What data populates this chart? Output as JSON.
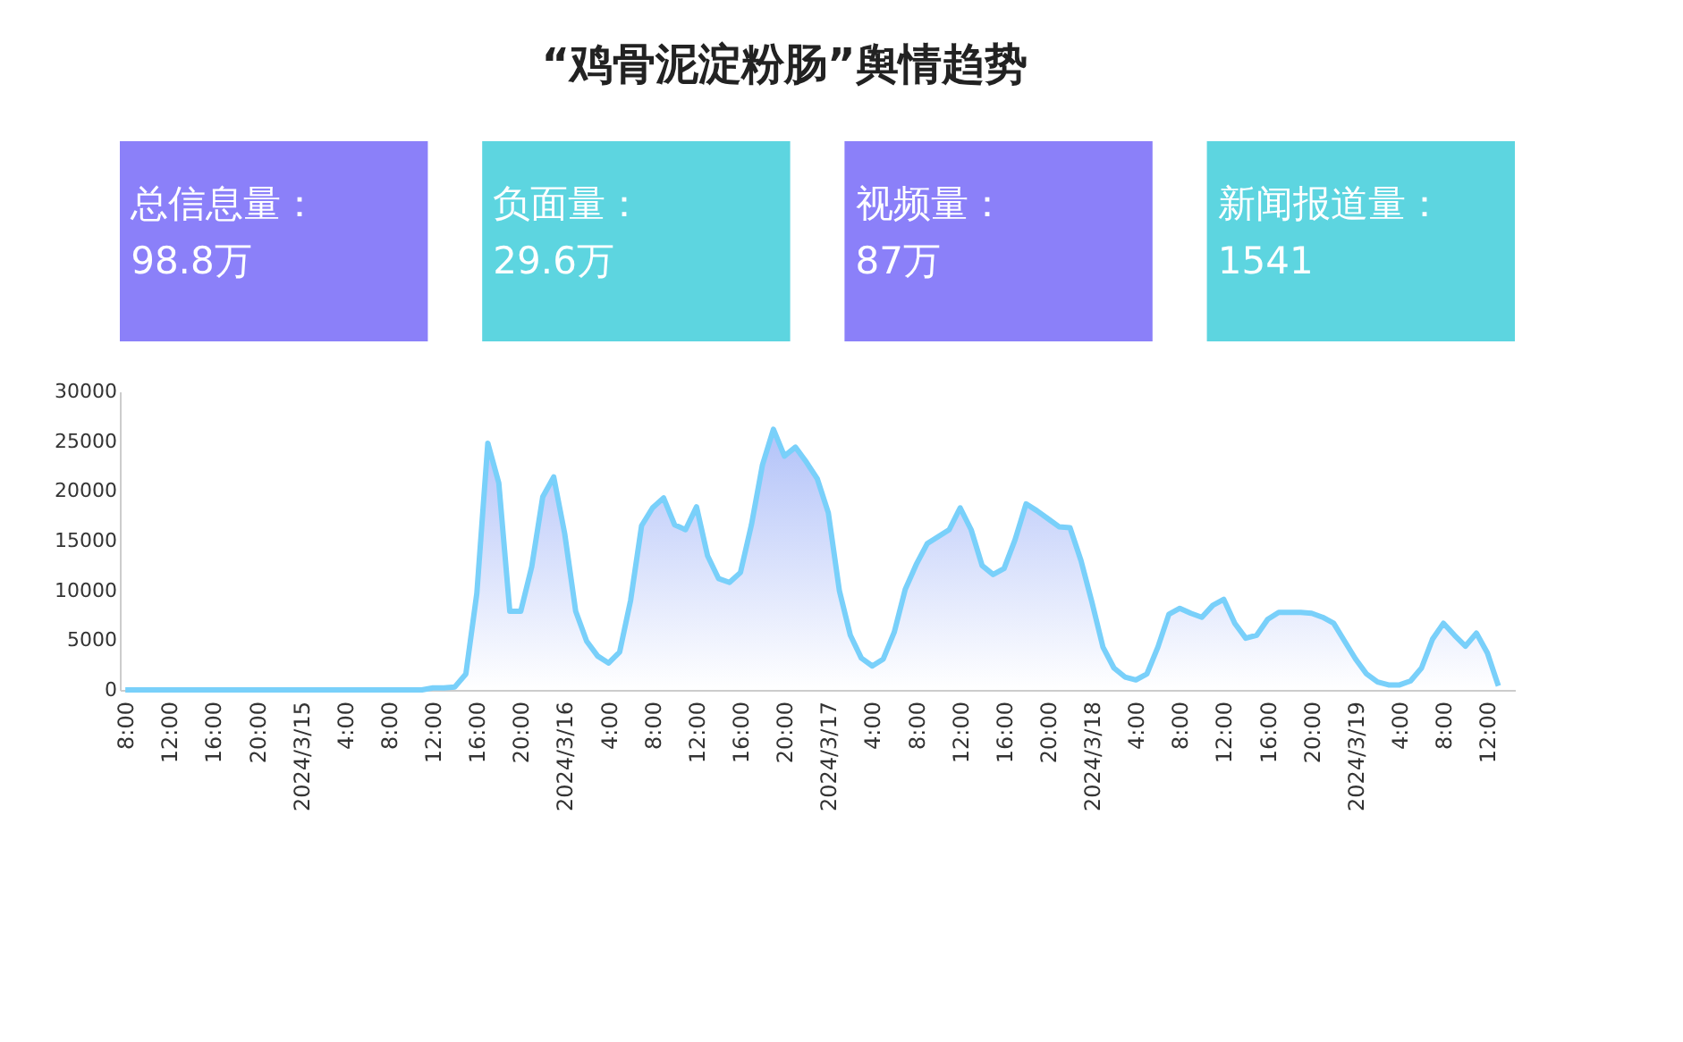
{
  "chart_data": {
    "type": "area",
    "title": "“鸡骨泥淀粉肠”舆情趋势",
    "annotations": [
      "总信息量：\n98.8万",
      "负面量：\n29.6万",
      "视频量：\n87万",
      "新闻报道量：\n1541"
    ],
    "x": [
      "2024-03-14T08:00",
      "2024-03-14T16:00",
      "2024-03-15T00:00",
      "2024-03-15T08:00",
      "2024-03-15T11:00",
      "2024-03-15T12:00",
      "2024-03-15T13:00",
      "2024-03-15T14:00",
      "2024-03-15T15:00",
      "2024-03-15T16:00",
      "2024-03-15T17:00",
      "2024-03-15T18:00",
      "2024-03-15T19:00",
      "2024-03-15T20:00",
      "2024-03-15T21:00",
      "2024-03-15T22:00",
      "2024-03-15T23:00",
      "2024-03-16T00:00",
      "2024-03-16T01:00",
      "2024-03-16T02:00",
      "2024-03-16T03:00",
      "2024-03-16T04:00",
      "2024-03-16T05:00",
      "2024-03-16T06:00",
      "2024-03-16T07:00",
      "2024-03-16T08:00",
      "2024-03-16T09:00",
      "2024-03-16T10:00",
      "2024-03-16T11:00",
      "2024-03-16T12:00",
      "2024-03-16T13:00",
      "2024-03-16T14:00",
      "2024-03-16T15:00",
      "2024-03-16T16:00",
      "2024-03-16T17:00",
      "2024-03-16T18:00",
      "2024-03-16T19:00",
      "2024-03-16T20:00",
      "2024-03-16T21:00",
      "2024-03-16T22:00",
      "2024-03-16T23:00",
      "2024-03-17T00:00",
      "2024-03-17T01:00",
      "2024-03-17T02:00",
      "2024-03-17T03:00",
      "2024-03-17T04:00",
      "2024-03-17T05:00",
      "2024-03-17T06:00",
      "2024-03-17T07:00",
      "2024-03-17T08:00",
      "2024-03-17T09:00",
      "2024-03-17T10:00",
      "2024-03-17T11:00",
      "2024-03-17T12:00",
      "2024-03-17T13:00",
      "2024-03-17T14:00",
      "2024-03-17T15:00",
      "2024-03-17T16:00",
      "2024-03-17T17:00",
      "2024-03-17T18:00",
      "2024-03-17T19:00",
      "2024-03-17T20:00",
      "2024-03-17T21:00",
      "2024-03-17T22:00",
      "2024-03-17T23:00",
      "2024-03-18T00:00",
      "2024-03-18T01:00",
      "2024-03-18T02:00",
      "2024-03-18T03:00",
      "2024-03-18T04:00",
      "2024-03-18T05:00",
      "2024-03-18T06:00",
      "2024-03-18T07:00",
      "2024-03-18T08:00",
      "2024-03-18T09:00",
      "2024-03-18T10:00",
      "2024-03-18T11:00",
      "2024-03-18T12:00",
      "2024-03-18T13:00",
      "2024-03-18T14:00",
      "2024-03-18T15:00",
      "2024-03-18T16:00",
      "2024-03-18T17:00",
      "2024-03-18T18:00",
      "2024-03-18T19:00",
      "2024-03-18T20:00",
      "2024-03-18T21:00",
      "2024-03-18T22:00",
      "2024-03-18T23:00",
      "2024-03-19T00:00",
      "2024-03-19T01:00",
      "2024-03-19T02:00",
      "2024-03-19T03:00",
      "2024-03-19T04:00",
      "2024-03-19T05:00",
      "2024-03-19T06:00",
      "2024-03-19T07:00",
      "2024-03-19T08:00",
      "2024-03-19T09:00",
      "2024-03-19T10:00",
      "2024-03-19T11:00",
      "2024-03-19T12:00",
      "2024-03-19T13:00"
    ],
    "series": [
      {
        "color": "#79d0fa",
        "values": [
          0,
          0,
          0,
          0,
          0,
          200,
          200,
          300,
          1600,
          9700,
          24800,
          20800,
          7900,
          7900,
          12400,
          19400,
          21400,
          15700,
          7900,
          4900,
          3400,
          2700,
          3800,
          9000,
          16500,
          18300,
          19300,
          16600,
          16100,
          18400,
          13500,
          11200,
          10800,
          11800,
          16600,
          22600,
          26200,
          23500,
          24400,
          22900,
          21200,
          17800,
          10000,
          5500,
          3200,
          2400,
          3100,
          5800,
          10100,
          12600,
          14700,
          15400,
          16100,
          18300,
          16100,
          12500,
          11600,
          12200,
          15100,
          18700,
          18000,
          17200,
          16400,
          16300,
          13000,
          8800,
          4300,
          2200,
          1300,
          1000,
          1600,
          4300,
          7600,
          8200,
          7700,
          7300,
          8500,
          9100,
          6700,
          5200,
          5500,
          7100,
          7800,
          7800,
          7800,
          7700,
          7300,
          6700,
          4900,
          3100,
          1600,
          800,
          500,
          500,
          900,
          2200,
          5100,
          6700,
          5500,
          4400,
          5700,
          3700,
          400
        ]
      }
    ],
    "xlim": [
      "2024-03-14T07:30",
      "2024-03-19T14:30"
    ],
    "xticks": [
      {
        "value": "2024-03-14T08:00",
        "label": "8:00"
      },
      {
        "value": "2024-03-14T12:00",
        "label": "12:00"
      },
      {
        "value": "2024-03-14T16:00",
        "label": "16:00"
      },
      {
        "value": "2024-03-14T20:00",
        "label": "20:00"
      },
      {
        "value": "2024-03-15T00:00",
        "label": "2024/3/15"
      },
      {
        "value": "2024-03-15T04:00",
        "label": "4:00"
      },
      {
        "value": "2024-03-15T08:00",
        "label": "8:00"
      },
      {
        "value": "2024-03-15T12:00",
        "label": "12:00"
      },
      {
        "value": "2024-03-15T16:00",
        "label": "16:00"
      },
      {
        "value": "2024-03-15T20:00",
        "label": "20:00"
      },
      {
        "value": "2024-03-16T00:00",
        "label": "2024/3/16"
      },
      {
        "value": "2024-03-16T04:00",
        "label": "4:00"
      },
      {
        "value": "2024-03-16T08:00",
        "label": "8:00"
      },
      {
        "value": "2024-03-16T12:00",
        "label": "12:00"
      },
      {
        "value": "2024-03-16T16:00",
        "label": "16:00"
      },
      {
        "value": "2024-03-16T20:00",
        "label": "20:00"
      },
      {
        "value": "2024-03-17T00:00",
        "label": "2024/3/17"
      },
      {
        "value": "2024-03-17T04:00",
        "label": "4:00"
      },
      {
        "value": "2024-03-17T08:00",
        "label": "8:00"
      },
      {
        "value": "2024-03-17T12:00",
        "label": "12:00"
      },
      {
        "value": "2024-03-17T16:00",
        "label": "16:00"
      },
      {
        "value": "2024-03-17T20:00",
        "label": "20:00"
      },
      {
        "value": "2024-03-18T00:00",
        "label": "2024/3/18"
      },
      {
        "value": "2024-03-18T04:00",
        "label": "4:00"
      },
      {
        "value": "2024-03-18T08:00",
        "label": "8:00"
      },
      {
        "value": "2024-03-18T12:00",
        "label": "12:00"
      },
      {
        "value": "2024-03-18T16:00",
        "label": "16:00"
      },
      {
        "value": "2024-03-18T20:00",
        "label": "20:00"
      },
      {
        "value": "2024-03-19T00:00",
        "label": "2024/3/19"
      },
      {
        "value": "2024-03-19T04:00",
        "label": "4:00"
      },
      {
        "value": "2024-03-19T08:00",
        "label": "8:00"
      },
      {
        "value": "2024-03-19T12:00",
        "label": "12:00"
      }
    ],
    "ylim": [
      0,
      30000
    ],
    "yticks": [
      0,
      5000,
      10000,
      15000,
      20000,
      25000,
      30000
    ],
    "grid": false,
    "line_style": "solid"
  }
}
